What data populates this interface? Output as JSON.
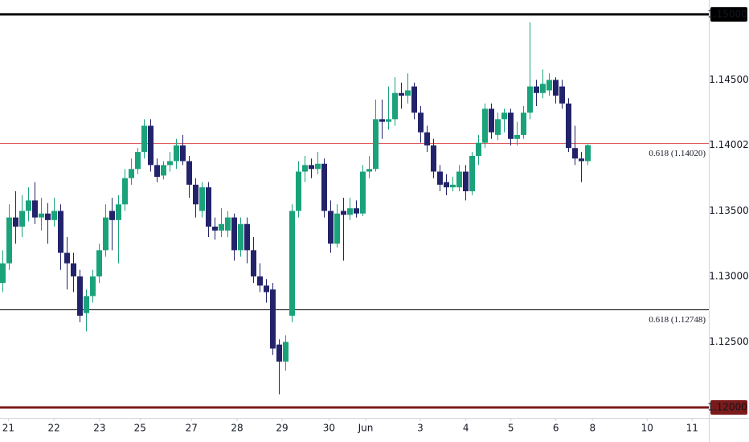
{
  "chart_data": {
    "type": "candlestick",
    "bull_color": "#1aa37a",
    "bear_color": "#23236b",
    "xlim": [
      -0.4,
      109.9
    ],
    "ylim": [
      1.1192,
      1.1511
    ],
    "xticks": [
      {
        "value": 0.9,
        "label": "21"
      },
      {
        "value": 8,
        "label": "22"
      },
      {
        "value": 15.1,
        "label": "23"
      },
      {
        "value": 21.4,
        "label": "25"
      },
      {
        "value": 29.4,
        "label": "27"
      },
      {
        "value": 36.5,
        "label": "28"
      },
      {
        "value": 43.5,
        "label": "29"
      },
      {
        "value": 50.8,
        "label": "30"
      },
      {
        "value": 56.5,
        "label": "Jun"
      },
      {
        "value": 65,
        "label": "3"
      },
      {
        "value": 72.1,
        "label": "4"
      },
      {
        "value": 79.1,
        "label": "5"
      },
      {
        "value": 86.1,
        "label": "6"
      },
      {
        "value": 91.8,
        "label": "8"
      },
      {
        "value": 100.3,
        "label": "10"
      },
      {
        "value": 107.3,
        "label": "11"
      }
    ],
    "yticks": [
      {
        "value": 1.145,
        "label": "1.14500"
      },
      {
        "value": 1.135,
        "label": "1.13500"
      },
      {
        "value": 1.13,
        "label": "1.13000"
      },
      {
        "value": 1.125,
        "label": "1.12500"
      }
    ],
    "levels": [
      {
        "value": 1.15,
        "label": "1.15000",
        "color": "#000000"
      },
      {
        "value": 1.12,
        "label": "1.12000",
        "color": "#7b1a1a"
      }
    ],
    "fib_lines": [
      {
        "value": 1.1402,
        "label": "0.618 (1.14020)",
        "color": "#e05a5a"
      },
      {
        "value": 1.12748,
        "label": "0.618 (1.12748)",
        "color": "#000000"
      }
    ],
    "last_price": {
      "value": 1.14002,
      "label": "1.14002"
    },
    "open": [
      1.1295,
      1.131,
      1.1345,
      1.1338,
      1.135,
      1.1358,
      1.1345,
      1.1348,
      1.1343,
      1.135,
      1.1318,
      1.131,
      1.13,
      1.1272,
      1.1285,
      1.13,
      1.132,
      1.135,
      1.1343,
      1.1355,
      1.1375,
      1.1382,
      1.1395,
      1.1415,
      1.1385,
      1.1377,
      1.1385,
      1.1388,
      1.14,
      1.1388,
      1.137,
      1.135,
      1.1368,
      1.1338,
      1.1335,
      1.1335,
      1.1345,
      1.132,
      1.134,
      1.132,
      1.13,
      1.1293,
      1.129,
      1.1248,
      1.1235,
      1.127,
      1.135,
      1.138,
      1.1385,
      1.1382,
      1.1386,
      1.135,
      1.1325,
      1.135,
      1.1347,
      1.1352,
      1.1348,
      1.138,
      1.1382,
      1.142,
      1.1418,
      1.142,
      1.144,
      1.1438,
      1.1445,
      1.1425,
      1.141,
      1.14,
      1.138,
      1.1372,
      1.1368,
      1.1368,
      1.138,
      1.1365,
      1.1392,
      1.1402,
      1.1428,
      1.1408,
      1.142,
      1.1425,
      1.1405,
      1.1408,
      1.1425,
      1.1445,
      1.144,
      1.1442,
      1.145,
      1.1445,
      1.1432,
      1.1398,
      1.139,
      1.1388
    ],
    "high": [
      1.132,
      1.1355,
      1.1365,
      1.1362,
      1.1368,
      1.1372,
      1.136,
      1.1356,
      1.136,
      1.1355,
      1.133,
      1.1318,
      1.1305,
      1.129,
      1.1305,
      1.1325,
      1.1355,
      1.136,
      1.1362,
      1.1382,
      1.139,
      1.1398,
      1.142,
      1.142,
      1.139,
      1.1388,
      1.1395,
      1.1405,
      1.1408,
      1.1392,
      1.1375,
      1.1372,
      1.1372,
      1.1345,
      1.1352,
      1.135,
      1.1348,
      1.1345,
      1.1345,
      1.133,
      1.131,
      1.1298,
      1.1295,
      1.1252,
      1.1255,
      1.1355,
      1.1388,
      1.1392,
      1.139,
      1.1395,
      1.139,
      1.1358,
      1.1355,
      1.136,
      1.136,
      1.1358,
      1.1385,
      1.1392,
      1.1435,
      1.1435,
      1.1445,
      1.1452,
      1.1448,
      1.1455,
      1.1448,
      1.143,
      1.1415,
      1.1405,
      1.1385,
      1.1378,
      1.1376,
      1.1385,
      1.1385,
      1.1395,
      1.1408,
      1.1432,
      1.1432,
      1.1425,
      1.1428,
      1.1428,
      1.1418,
      1.143,
      1.1494,
      1.145,
      1.1458,
      1.1455,
      1.1452,
      1.145,
      1.1436,
      1.1415,
      1.1395,
      1.1401
    ],
    "low": [
      1.1288,
      1.1305,
      1.1325,
      1.133,
      1.1342,
      1.134,
      1.1335,
      1.1325,
      1.1338,
      1.1305,
      1.129,
      1.1288,
      1.1265,
      1.1258,
      1.128,
      1.1295,
      1.1315,
      1.132,
      1.131,
      1.135,
      1.137,
      1.1378,
      1.139,
      1.138,
      1.1372,
      1.1374,
      1.138,
      1.1382,
      1.1385,
      1.136,
      1.1345,
      1.1345,
      1.133,
      1.1328,
      1.133,
      1.133,
      1.1312,
      1.1315,
      1.131,
      1.1295,
      1.1288,
      1.128,
      1.124,
      1.121,
      1.1228,
      1.1265,
      1.1345,
      1.1372,
      1.1375,
      1.1378,
      1.1345,
      1.1318,
      1.1322,
      1.1312,
      1.1343,
      1.1345,
      1.1346,
      1.1375,
      1.138,
      1.1405,
      1.1412,
      1.1415,
      1.1428,
      1.1432,
      1.142,
      1.1402,
      1.1395,
      1.1375,
      1.1365,
      1.1362,
      1.1365,
      1.1365,
      1.1358,
      1.1362,
      1.1385,
      1.1398,
      1.1405,
      1.1404,
      1.141,
      1.14,
      1.14,
      1.1405,
      1.142,
      1.143,
      1.1436,
      1.1438,
      1.1432,
      1.1428,
      1.1395,
      1.1385,
      1.1372,
      1.1385
    ],
    "close": [
      1.131,
      1.1345,
      1.1338,
      1.135,
      1.1358,
      1.1345,
      1.1348,
      1.1343,
      1.135,
      1.1318,
      1.131,
      1.13,
      1.127,
      1.1285,
      1.13,
      1.132,
      1.1345,
      1.1343,
      1.1355,
      1.1375,
      1.1382,
      1.1395,
      1.1415,
      1.1385,
      1.1376,
      1.1385,
      1.1388,
      1.14,
      1.1388,
      1.137,
      1.1355,
      1.1368,
      1.1338,
      1.1335,
      1.134,
      1.1345,
      1.132,
      1.134,
      1.132,
      1.13,
      1.1293,
      1.1288,
      1.1245,
      1.1235,
      1.125,
      1.135,
      1.138,
      1.1385,
      1.1382,
      1.1386,
      1.135,
      1.1325,
      1.1348,
      1.1347,
      1.1352,
      1.1348,
      1.138,
      1.1382,
      1.142,
      1.1418,
      1.142,
      1.144,
      1.1438,
      1.1442,
      1.1425,
      1.141,
      1.14,
      1.138,
      1.137,
      1.1368,
      1.137,
      1.138,
      1.1365,
      1.1392,
      1.1402,
      1.1428,
      1.141,
      1.142,
      1.1425,
      1.1405,
      1.1408,
      1.1425,
      1.1445,
      1.144,
      1.1447,
      1.145,
      1.1438,
      1.1432,
      1.1398,
      1.139,
      1.1388,
      1.14002
    ]
  }
}
